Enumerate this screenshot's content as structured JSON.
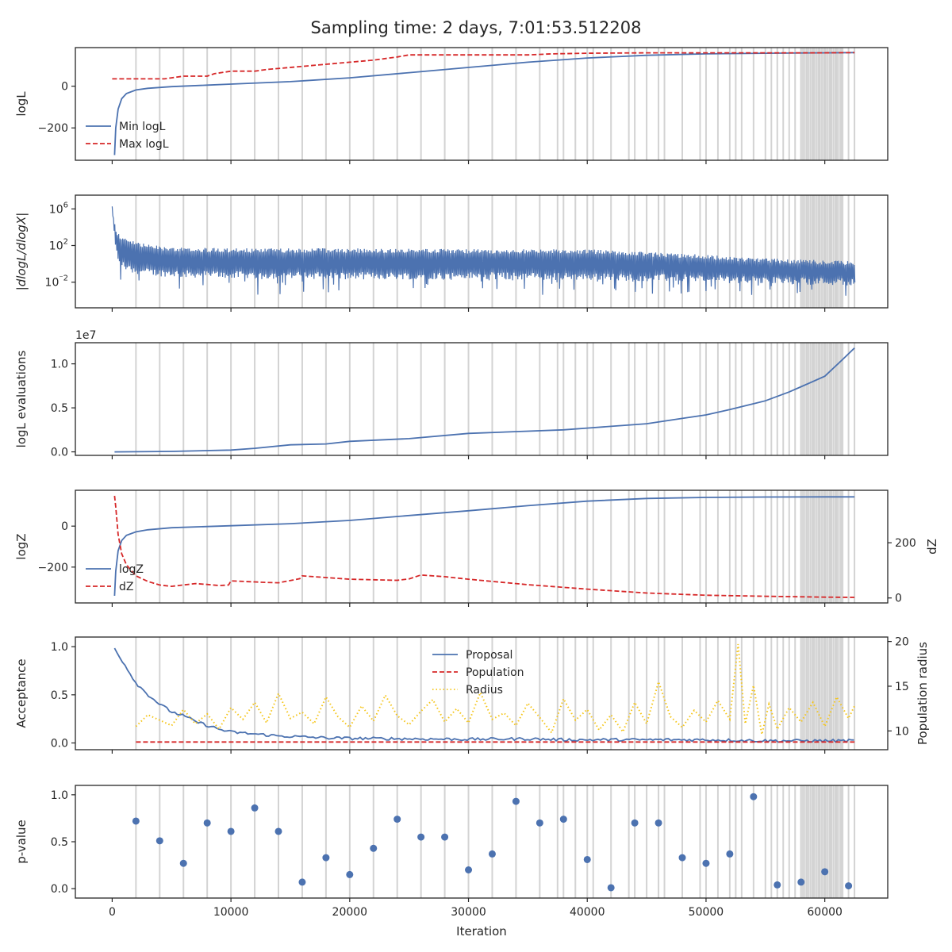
{
  "title": "Sampling time: 2 days, 7:01:53.512208",
  "xlabel": "Iteration",
  "x_range": [
    -3100,
    65300
  ],
  "x_ticks": [
    0,
    10000,
    20000,
    30000,
    40000,
    50000,
    60000
  ],
  "x_tick_labels": [
    "0",
    "10000",
    "20000",
    "30000",
    "40000",
    "50000",
    "60000"
  ],
  "markers": [
    2000,
    4000,
    6000,
    8000,
    10000,
    12000,
    14000,
    16000,
    18000,
    20000,
    22000,
    24000,
    26000,
    28000,
    30000,
    32000,
    34000,
    36000,
    38000,
    40000,
    42000,
    44000,
    46000,
    48000,
    50000,
    52000,
    54000,
    56000,
    58000,
    60000,
    62000
  ],
  "colors": {
    "blue": "#4c72b0",
    "red": "#d62728",
    "yellow": "#f5c518",
    "marker": "#d3d3d3",
    "axes": "#262626"
  },
  "chart_data": [
    {
      "type": "line",
      "ylabel": "logL",
      "ylim": [
        -355,
        185
      ],
      "y_ticks": [
        -200,
        0
      ],
      "y_tick_labels": [
        "−200",
        "0"
      ],
      "legend": {
        "position": "lower-left",
        "entries": [
          "Min logL",
          "Max logL"
        ]
      },
      "series": [
        {
          "name": "Min logL",
          "style": "solid",
          "color": "blue",
          "x": [
            200,
            300,
            500,
            800,
            1200,
            2000,
            3000,
            5000,
            8000,
            10000,
            15000,
            20000,
            25000,
            30000,
            35000,
            40000,
            45000,
            50000,
            55000,
            60000,
            62500
          ],
          "y": [
            -330,
            -200,
            -110,
            -60,
            -35,
            -18,
            -10,
            -2,
            5,
            10,
            22,
            40,
            65,
            90,
            115,
            135,
            148,
            155,
            158,
            160,
            161
          ]
        },
        {
          "name": "Max logL",
          "style": "dashed",
          "color": "red",
          "x": [
            0,
            4400,
            5000,
            6000,
            8000,
            8600,
            10000,
            12000,
            13000,
            16000,
            18000,
            20000,
            22000,
            24000,
            25000,
            30000,
            35000,
            37000,
            40000,
            45000,
            50000,
            55000,
            60000,
            62500
          ],
          "y": [
            35,
            35,
            40,
            48,
            48,
            60,
            72,
            72,
            80,
            95,
            105,
            115,
            125,
            140,
            150,
            150,
            150,
            155,
            158,
            160,
            160,
            160,
            160,
            161
          ]
        }
      ]
    },
    {
      "type": "line",
      "ylabel": "|dlogL/dlogX|",
      "yscale": "log",
      "ylim": [
        -4.8,
        7.5
      ],
      "y_ticks": [
        6,
        2,
        -2
      ],
      "y_tick_labels": [
        "10⁶",
        "10²",
        "10⁻²"
      ],
      "series": [
        {
          "name": "dlogL/dlogX",
          "style": "solid",
          "color": "blue",
          "band_x": [
            0,
            200,
            400,
            800,
            1500,
            3000,
            6000,
            10000,
            20000,
            30000,
            40000,
            50000,
            55000,
            60000,
            62500
          ],
          "band_top": [
            6.6,
            4.5,
            3.6,
            3.0,
            2.6,
            2.1,
            1.8,
            1.7,
            1.7,
            1.6,
            1.6,
            1.0,
            0.6,
            0.4,
            0.3
          ],
          "band_bot": [
            5.0,
            1.5,
            0.5,
            -0.5,
            -1.0,
            -1.3,
            -1.5,
            -1.6,
            -1.7,
            -1.7,
            -1.8,
            -2.0,
            -2.2,
            -2.3,
            -2.4
          ],
          "spike_min": -3.5
        }
      ]
    },
    {
      "type": "line",
      "ylabel": "logL evaluations",
      "y_offset_label": "1e7",
      "ylim": [
        -0.04,
        1.24
      ],
      "y_ticks": [
        0.0,
        0.5,
        1.0
      ],
      "y_tick_labels": [
        "0.0",
        "0.5",
        "1.0"
      ],
      "series": [
        {
          "name": "logL evaluations",
          "style": "solid",
          "color": "blue",
          "x": [
            200,
            5000,
            10000,
            12000,
            15000,
            18000,
            20000,
            25000,
            30000,
            35000,
            38000,
            40000,
            42000,
            45000,
            48000,
            50000,
            52000,
            55000,
            57000,
            58000,
            60000,
            61500,
            62500
          ],
          "y": [
            0.0,
            0.005,
            0.02,
            0.04,
            0.08,
            0.09,
            0.12,
            0.15,
            0.21,
            0.235,
            0.25,
            0.27,
            0.29,
            0.32,
            0.38,
            0.42,
            0.48,
            0.58,
            0.68,
            0.74,
            0.86,
            1.05,
            1.18
          ]
        }
      ]
    },
    {
      "type": "line",
      "ylabel": "logZ",
      "ylim": [
        -375,
        175
      ],
      "y_ticks": [
        -200,
        0
      ],
      "y_tick_labels": [
        "−200",
        "0"
      ],
      "y2label": "dZ",
      "y2lim": [
        -18,
        390
      ],
      "y2_ticks": [
        0,
        200
      ],
      "y2_tick_labels": [
        "0",
        "200"
      ],
      "legend": {
        "position": "lower-left",
        "entries": [
          "logZ",
          "dZ"
        ]
      },
      "series": [
        {
          "name": "logZ",
          "style": "solid",
          "color": "blue",
          "axis": "left",
          "x": [
            200,
            300,
            500,
            800,
            1200,
            2000,
            3000,
            5000,
            8000,
            10000,
            15000,
            20000,
            25000,
            30000,
            35000,
            40000,
            45000,
            50000,
            55000,
            60000,
            62500
          ],
          "y": [
            -340,
            -220,
            -120,
            -70,
            -45,
            -28,
            -18,
            -8,
            -2,
            2,
            12,
            28,
            52,
            75,
            100,
            122,
            135,
            140,
            142,
            143,
            143
          ]
        },
        {
          "name": "dZ",
          "style": "dashed",
          "color": "red",
          "axis": "right",
          "x": [
            200,
            300,
            500,
            800,
            1200,
            2000,
            3000,
            4000,
            5000,
            7000,
            8000,
            9000,
            9800,
            10000,
            12000,
            13000,
            14000,
            15000,
            15800,
            16000,
            18000,
            20000,
            22000,
            24000,
            25000,
            26000,
            28000,
            30000,
            35000,
            40000,
            45000,
            50000,
            55000,
            60000,
            62500
          ],
          "y": [
            370,
            330,
            230,
            160,
            120,
            80,
            60,
            47,
            42,
            52,
            49,
            45,
            47,
            62,
            58,
            56,
            55,
            63,
            70,
            80,
            74,
            68,
            66,
            64,
            69,
            83,
            77,
            68,
            48,
            32,
            18,
            10,
            6,
            3,
            2
          ]
        }
      ]
    },
    {
      "type": "line",
      "ylabel": "Acceptance",
      "ylim": [
        -0.07,
        1.1
      ],
      "y_ticks": [
        0.0,
        0.5,
        1.0
      ],
      "y_tick_labels": [
        "0.0",
        "0.5",
        "1.0"
      ],
      "y2label": "Population radius",
      "y2lim": [
        7.9,
        20.5
      ],
      "y2_ticks": [
        10,
        15,
        20
      ],
      "y2_tick_labels": [
        "10",
        "15",
        "20"
      ],
      "legend": {
        "position": "upper-center",
        "entries": [
          "Proposal",
          "Population",
          "Radius"
        ]
      },
      "series": [
        {
          "name": "Proposal",
          "style": "solid",
          "color": "blue",
          "axis": "left",
          "x": [
            200,
            1000,
            2000,
            3000,
            4000,
            5000,
            6000,
            7000,
            8000,
            9000,
            10000,
            12000,
            14000,
            16000,
            18000,
            20000,
            25000,
            30000,
            35000,
            38000,
            40000,
            45000,
            50000,
            55000,
            60000,
            62500
          ],
          "y": [
            0.98,
            0.82,
            0.62,
            0.5,
            0.4,
            0.32,
            0.28,
            0.22,
            0.18,
            0.14,
            0.11,
            0.09,
            0.07,
            0.06,
            0.05,
            0.045,
            0.04,
            0.035,
            0.04,
            0.03,
            0.03,
            0.03,
            0.03,
            0.02,
            0.02,
            0.02
          ],
          "noise": 0.03
        },
        {
          "name": "Population",
          "style": "dashed",
          "color": "red",
          "axis": "left",
          "x": [
            2000,
            62500
          ],
          "y": [
            0.01,
            0.01
          ]
        },
        {
          "name": "Radius",
          "style": "dotted",
          "color": "yellow",
          "axis": "right",
          "x": [
            2000,
            3000,
            4000,
            5000,
            6000,
            7000,
            8000,
            9000,
            10000,
            11000,
            12000,
            13000,
            14000,
            15000,
            16000,
            17000,
            18000,
            19000,
            20000,
            21000,
            22000,
            23000,
            24000,
            25000,
            26000,
            27000,
            28000,
            29000,
            30000,
            31000,
            32000,
            33000,
            34000,
            35000,
            36000,
            37000,
            38000,
            39000,
            40000,
            41000,
            42000,
            43000,
            44000,
            45000,
            46000,
            47000,
            48000,
            49000,
            50000,
            51000,
            52000,
            52700,
            53300,
            54000,
            54700,
            55300,
            56000,
            57000,
            58000,
            59000,
            60000,
            61000,
            62000,
            62500
          ],
          "y": [
            10.5,
            11.8,
            11.2,
            10.6,
            12.4,
            10.8,
            11.9,
            10.2,
            12.6,
            11.3,
            13.2,
            10.9,
            14.2,
            11.4,
            12.1,
            10.8,
            13.8,
            11.6,
            10.4,
            12.8,
            11.1,
            14.0,
            11.7,
            10.7,
            12.2,
            13.5,
            11.0,
            12.5,
            10.9,
            14.3,
            11.3,
            12.0,
            10.6,
            13.1,
            11.5,
            9.8,
            13.6,
            11.2,
            12.4,
            10.1,
            11.8,
            9.9,
            13.2,
            10.8,
            15.5,
            11.6,
            10.4,
            12.3,
            11.0,
            13.4,
            11.3,
            19.7,
            10.8,
            15.1,
            9.6,
            13.0,
            10.2,
            12.6,
            11.0,
            13.2,
            10.5,
            13.8,
            11.4,
            12.8
          ]
        }
      ]
    },
    {
      "type": "scatter",
      "ylabel": "p-value",
      "ylim": [
        -0.1,
        1.1
      ],
      "y_ticks": [
        0.0,
        0.5,
        1.0
      ],
      "y_tick_labels": [
        "0.0",
        "0.5",
        "1.0"
      ],
      "series": [
        {
          "name": "p-value",
          "color": "blue",
          "x": [
            2000,
            4000,
            6000,
            8000,
            10000,
            12000,
            14000,
            16000,
            18000,
            20000,
            22000,
            24000,
            26000,
            28000,
            30000,
            32000,
            34000,
            36000,
            38000,
            40000,
            42000,
            44000,
            46000,
            48000,
            50000,
            52000,
            54000,
            56000,
            58000,
            60000,
            62000
          ],
          "y": [
            0.72,
            0.51,
            0.27,
            0.7,
            0.61,
            0.86,
            0.61,
            0.07,
            0.33,
            0.15,
            0.43,
            0.74,
            0.55,
            0.55,
            0.2,
            0.37,
            0.93,
            0.7,
            0.74,
            0.31,
            0.01,
            0.7,
            0.7,
            0.33,
            0.27,
            0.37,
            0.98,
            0.04,
            0.07,
            0.18,
            0.03
          ]
        }
      ]
    }
  ]
}
